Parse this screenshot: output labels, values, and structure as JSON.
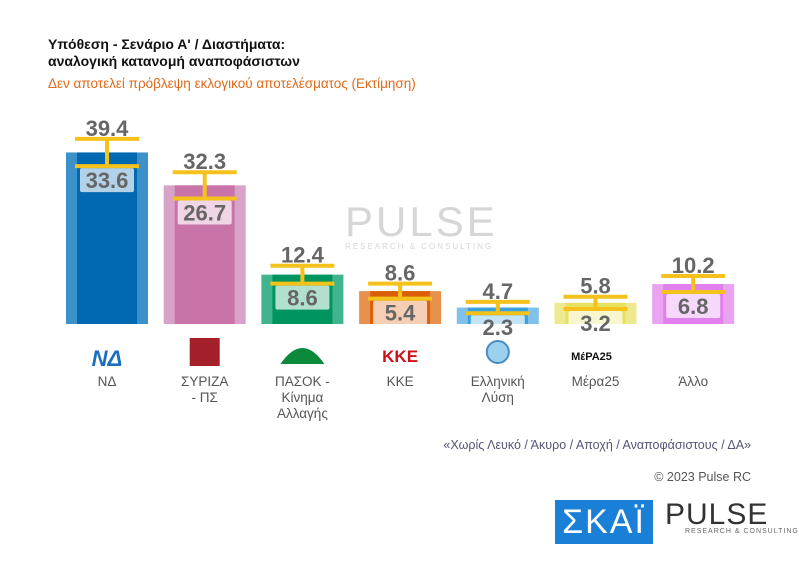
{
  "chart_data": {
    "type": "bar",
    "title": "Υπόθεση - Σενάριο Α' / Διαστήματα:",
    "title_line2": "αναλογική κατανομή αναποφάσιστων",
    "subtitle": "Δεν αποτελεί πρόβλεψη εκλογικού αποτελέσματος   (Εκτίμηση)",
    "categories": [
      "ΝΔ",
      "ΣΥΡΙΖΑ - ΠΣ",
      "ΠΑΣΟΚ - Κίνημα Αλλαγής",
      "ΚΚΕ",
      "Ελληνική Λύση",
      "Μέρα25",
      "Άλλο"
    ],
    "labels_display": [
      [
        "ΝΔ"
      ],
      [
        "ΣΥΡΙΖΑ",
        "- ΠΣ"
      ],
      [
        "ΠΑΣΟΚ -",
        "Κίνημα",
        "Αλλαγής"
      ],
      [
        "ΚΚΕ"
      ],
      [
        "Ελληνική",
        "Λύση"
      ],
      [
        "Μέρα25"
      ],
      [
        "Άλλο"
      ]
    ],
    "series": [
      {
        "name": "high",
        "values": [
          39.4,
          32.3,
          12.4,
          8.6,
          4.7,
          5.8,
          10.2
        ]
      },
      {
        "name": "low",
        "values": [
          33.6,
          26.7,
          8.6,
          5.4,
          2.3,
          3.2,
          6.8
        ]
      }
    ],
    "colors_outer": [
      "#3d91c9",
      "#d9a2c9",
      "#40b48e",
      "#e8914c",
      "#7fc1ea",
      "#eee98f",
      "#e9a3f1"
    ],
    "colors_inner": [
      "#0069b1",
      "#c974a9",
      "#00945f",
      "#d95f0b",
      "#3aa1dd",
      "#e7e15f",
      "#e07fee"
    ],
    "errorbar_color": "#f5c21b",
    "grid": false
  },
  "footer": {
    "note": "«Χωρίς Λευκό / Άκυρο / Αποχή / Αναποφάσιστους / ΔΑ»",
    "copyright": "© 2023 Pulse RC"
  },
  "logos": {
    "skai": "ΣΚΑΪ",
    "pulse": "PULSE",
    "pulse_sub": "RESEARCH & CONSULTING",
    "party_logos": [
      "ΝΔ",
      "ΣΥΡΙΖΑ",
      "ΠΑΣΟΚ",
      "ΚΚΕ",
      "Ελληνική Λύση",
      "ΜέΡΑ25"
    ]
  }
}
